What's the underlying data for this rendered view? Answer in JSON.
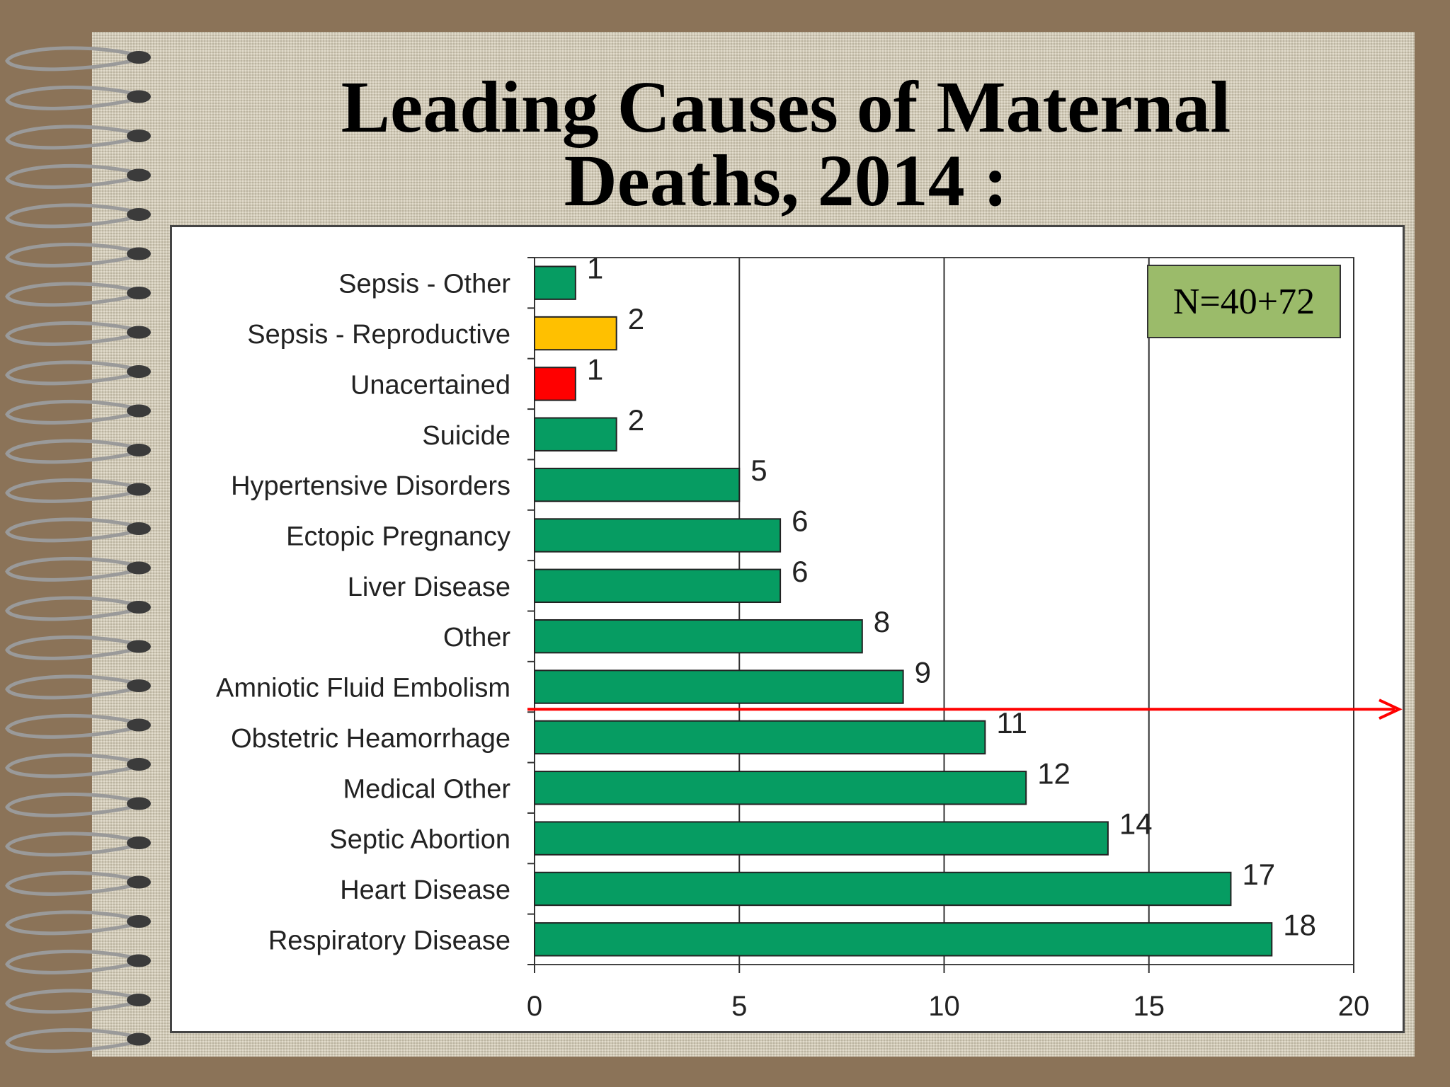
{
  "slide": {
    "title_line1": "Leading Causes of Maternal",
    "title_line2": "Deaths, 2014 :",
    "annotation": "N=40+72"
  },
  "colors": {
    "bar_default": "#069c62",
    "bar_yellow": "#ffc000",
    "bar_red": "#ff0000",
    "arrow": "#ff0000",
    "annotation_bg": "#9bbb6a"
  },
  "chart_data": {
    "type": "bar",
    "orientation": "horizontal",
    "categories": [
      "Sepsis - Other",
      "Sepsis - Reproductive",
      "Unacertained",
      "Suicide",
      "Hypertensive Disorders",
      "Ectopic Pregnancy",
      "Liver Disease",
      "Other",
      "Amniotic Fluid Embolism",
      "Obstetric Heamorrhage",
      "Medical Other",
      "Septic Abortion",
      "Heart Disease",
      "Respiratory Disease"
    ],
    "values": [
      1,
      2,
      1,
      2,
      5,
      6,
      6,
      8,
      9,
      11,
      12,
      14,
      17,
      18
    ],
    "bar_colors": [
      "#069c62",
      "#ffc000",
      "#ff0000",
      "#069c62",
      "#069c62",
      "#069c62",
      "#069c62",
      "#069c62",
      "#069c62",
      "#069c62",
      "#069c62",
      "#069c62",
      "#069c62",
      "#069c62"
    ],
    "xlim": [
      0,
      20
    ],
    "xticks": [
      0,
      5,
      10,
      15,
      20
    ],
    "grid": "vertical",
    "data_labels": true,
    "xlabel": "",
    "ylabel": ""
  }
}
